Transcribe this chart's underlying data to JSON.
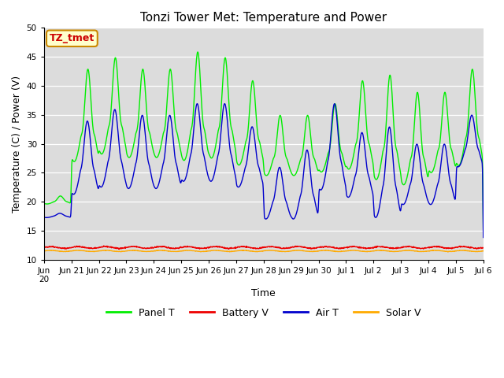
{
  "title": "Tonzi Tower Met: Temperature and Power",
  "xlabel": "Time",
  "ylabel": "Temperature (C) / Power (V)",
  "ylim": [
    10,
    50
  ],
  "yticks": [
    10,
    15,
    20,
    25,
    30,
    35,
    40,
    45,
    50
  ],
  "bg_color": "#dcdcdc",
  "panel_color": "#00ee00",
  "battery_color": "#ee0000",
  "air_color": "#0000cc",
  "solar_color": "#ffaa00",
  "annotation_text": "TZ_tmet",
  "annotation_bg": "#ffffcc",
  "annotation_border": "#cc8800",
  "annotation_text_color": "#cc0000",
  "legend_labels": [
    "Panel T",
    "Battery V",
    "Air T",
    "Solar V"
  ],
  "n_days": 16,
  "start_day": 20
}
